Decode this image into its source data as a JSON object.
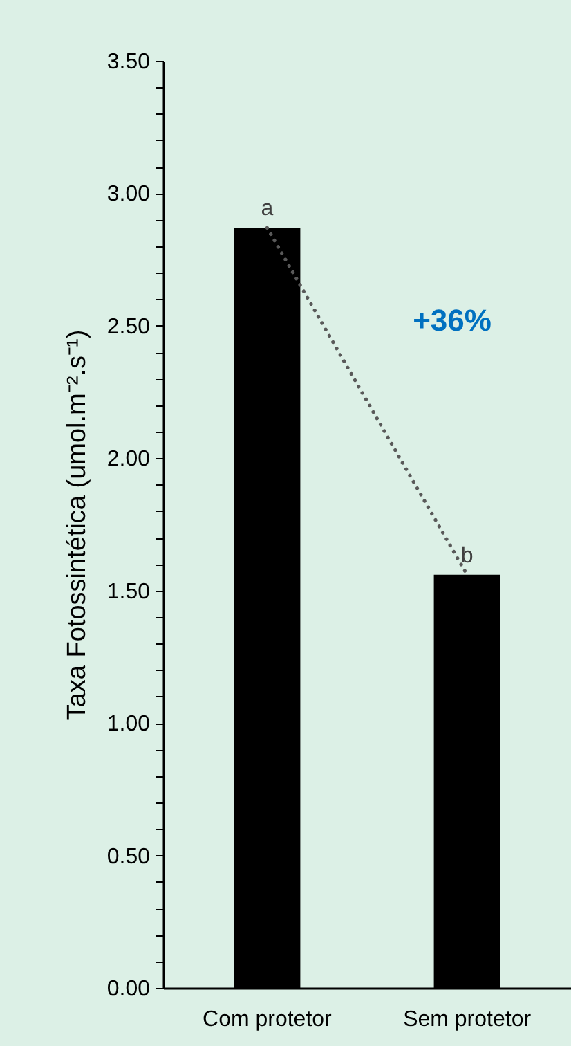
{
  "chart_data": {
    "type": "bar",
    "ylabel": "Taxa Fotossintética (umol.m⁻².s⁻¹)",
    "categories": [
      "Com protetor",
      "Sem protetor"
    ],
    "series": [
      {
        "color": "#000000",
        "values": [
          2.87,
          1.56
        ]
      },
      {
        "type": "line",
        "color": "#595959",
        "line_style": "dotted",
        "marker": "none",
        "values": [
          2.87,
          1.56
        ]
      }
    ],
    "ylim": [
      0,
      3.5
    ],
    "yticks": [
      {
        "value": 0,
        "label": "0.00"
      },
      {
        "value": 0.1,
        "label": null
      },
      {
        "value": 0.2,
        "label": null
      },
      {
        "value": 0.3,
        "label": null
      },
      {
        "value": 0.4,
        "label": null
      },
      {
        "value": 0.5,
        "label": "0.50"
      },
      {
        "value": 0.6,
        "label": null
      },
      {
        "value": 0.7,
        "label": null
      },
      {
        "value": 0.8,
        "label": null
      },
      {
        "value": 0.9,
        "label": null
      },
      {
        "value": 1,
        "label": "1.00"
      },
      {
        "value": 1.1,
        "label": null
      },
      {
        "value": 1.2,
        "label": null
      },
      {
        "value": 1.3,
        "label": null
      },
      {
        "value": 1.4,
        "label": null
      },
      {
        "value": 1.5,
        "label": "1.50"
      },
      {
        "value": 1.6,
        "label": null
      },
      {
        "value": 1.7,
        "label": null
      },
      {
        "value": 1.8,
        "label": null
      },
      {
        "value": 1.9,
        "label": null
      },
      {
        "value": 2,
        "label": "2.00"
      },
      {
        "value": 2.1,
        "label": null
      },
      {
        "value": 2.2,
        "label": null
      },
      {
        "value": 2.3,
        "label": null
      },
      {
        "value": 2.4,
        "label": null
      },
      {
        "value": 2.5,
        "label": "2.50"
      },
      {
        "value": 2.6,
        "label": null
      },
      {
        "value": 2.7,
        "label": null
      },
      {
        "value": 2.8,
        "label": null
      },
      {
        "value": 2.9,
        "label": null
      },
      {
        "value": 3,
        "label": "3.00"
      },
      {
        "value": 3.1,
        "label": null
      },
      {
        "value": 3.2,
        "label": null
      },
      {
        "value": 3.3,
        "label": null
      },
      {
        "value": 3.4,
        "label": null
      },
      {
        "value": 3.5,
        "label": "3.50"
      }
    ],
    "grid": false,
    "annotations": [
      {
        "text": "a",
        "x": "Com protetor",
        "y": 2.87
      },
      {
        "text": "b",
        "x": "Sem protetor",
        "y": 1.56
      },
      "+36%"
    ]
  }
}
